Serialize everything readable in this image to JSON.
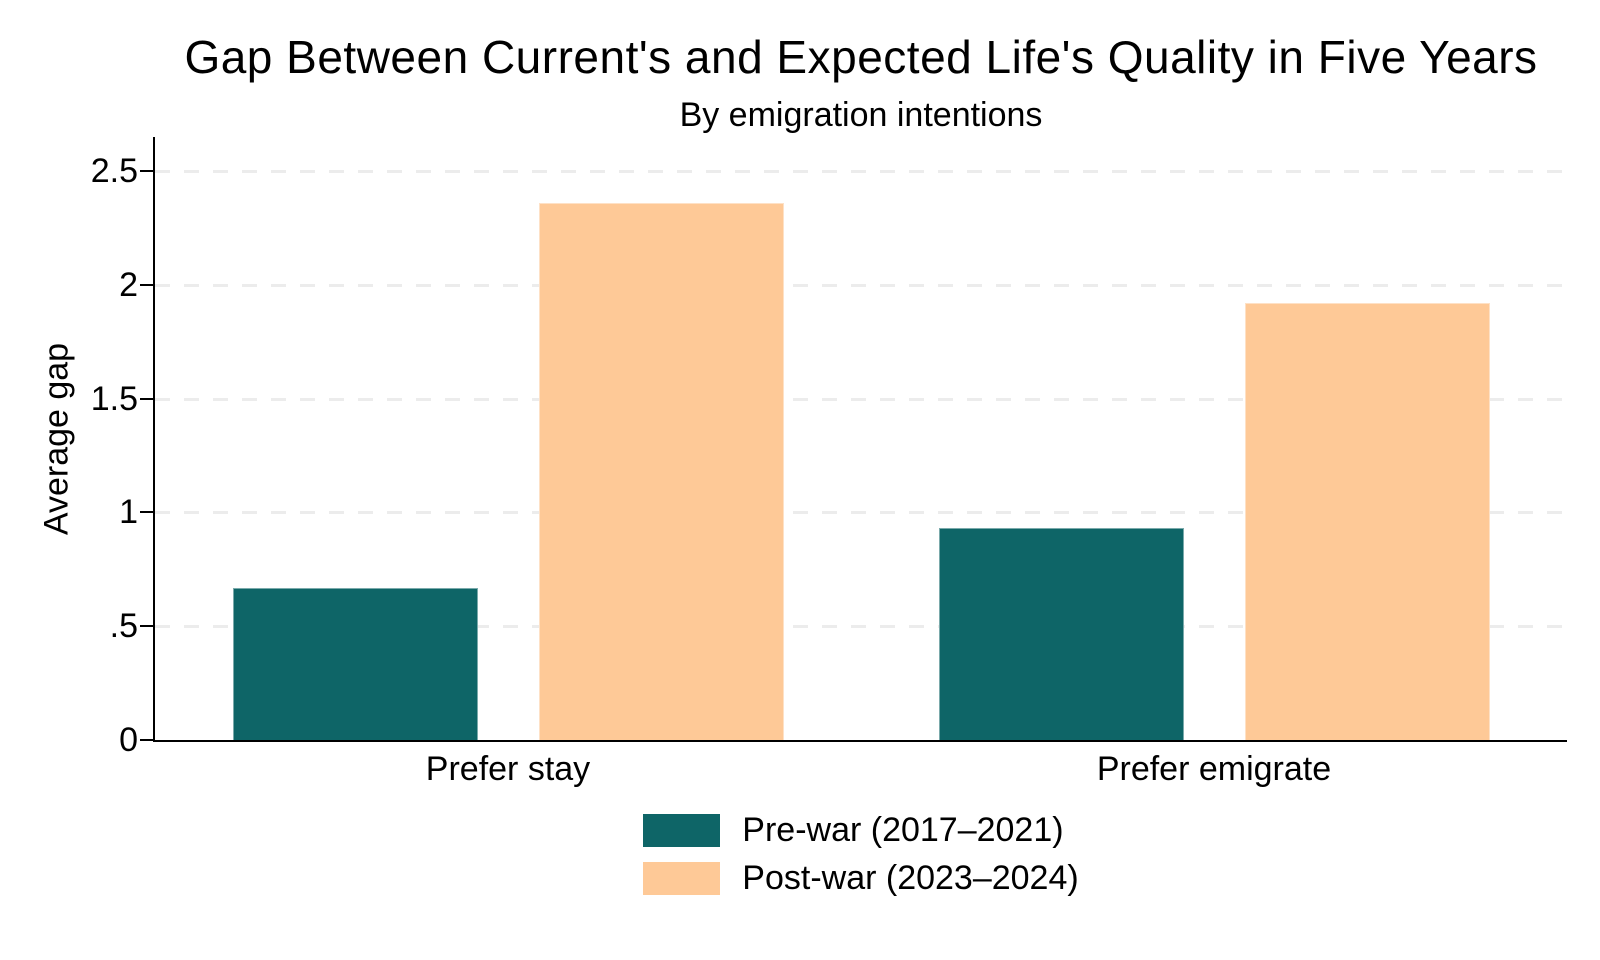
{
  "chart_data": {
    "type": "bar",
    "title": "Gap Between Current's and Expected Life's Quality in Five Years",
    "subtitle": "By emigration intentions",
    "ylabel": "Average gap",
    "xlabel": "",
    "categories": [
      "Prefer stay",
      "Prefer emigrate"
    ],
    "series": [
      {
        "name": "Pre-war (2017–2021)",
        "color": "#0e6567",
        "values": [
          0.67,
          0.93
        ]
      },
      {
        "name": "Post-war (2023–2024)",
        "color": "#fec997",
        "values": [
          2.36,
          1.92
        ]
      }
    ],
    "ylim": [
      0,
      2.65
    ],
    "yticks": [
      0,
      0.5,
      1,
      1.5,
      2,
      2.5
    ],
    "ytick_labels": [
      "0",
      ".5",
      "1",
      "1.5",
      "2",
      "2.5"
    ],
    "grid": "horizontal-dashed",
    "legend_position": "bottom",
    "colors": {
      "axis": "#000000",
      "grid": "#ececec",
      "background": "#ffffff"
    }
  }
}
